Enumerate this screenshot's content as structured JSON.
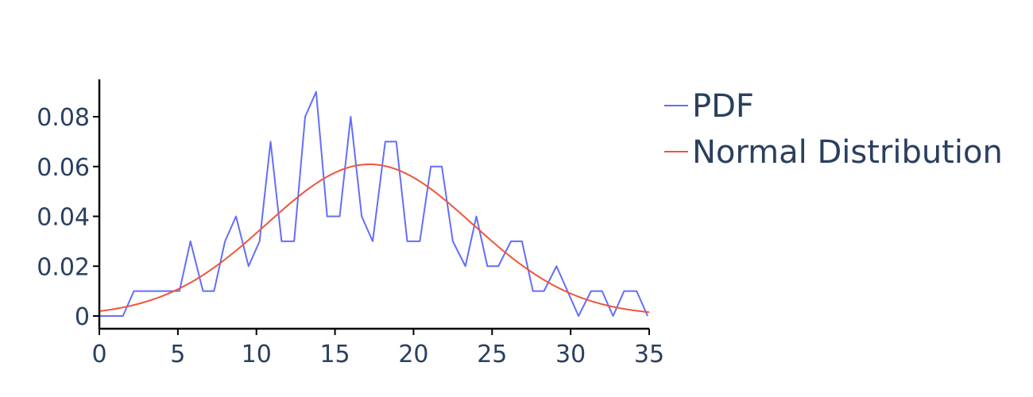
{
  "chart_data": {
    "type": "line",
    "x_axis": {
      "range": [
        0,
        35
      ],
      "ticks": [
        0,
        5,
        10,
        15,
        20,
        25,
        30,
        35
      ],
      "tick_labels": [
        "0",
        "5",
        "10",
        "15",
        "20",
        "25",
        "30",
        "35"
      ]
    },
    "y_axis": {
      "range": [
        -0.005,
        0.095
      ],
      "ticks": [
        0,
        0.02,
        0.04,
        0.06,
        0.08
      ],
      "tick_labels": [
        "0",
        "0.02",
        "0.04",
        "0.06",
        "0.08"
      ]
    },
    "grid": false,
    "legend_position": "top-right",
    "series": [
      {
        "name": "PDF",
        "color": "#636efa",
        "x": [
          0,
          0.7,
          1.5,
          2.2,
          2.9,
          3.6,
          4.4,
          5.1,
          5.8,
          6.6,
          7.3,
          8.0,
          8.7,
          9.5,
          10.2,
          10.9,
          11.6,
          12.4,
          13.1,
          13.8,
          14.5,
          15.3,
          16.0,
          16.7,
          17.4,
          18.2,
          18.9,
          19.6,
          20.4,
          21.1,
          21.8,
          22.5,
          23.3,
          24.0,
          24.7,
          25.4,
          26.2,
          26.9,
          27.6,
          28.3,
          29.1,
          29.8,
          30.5,
          31.3,
          32.0,
          32.7,
          33.4,
          34.2,
          34.9
        ],
        "y": [
          0,
          0,
          0,
          0.01,
          0.01,
          0.01,
          0.01,
          0.01,
          0.03,
          0.01,
          0.01,
          0.03,
          0.04,
          0.02,
          0.03,
          0.07,
          0.03,
          0.03,
          0.08,
          0.09,
          0.04,
          0.04,
          0.08,
          0.04,
          0.03,
          0.07,
          0.07,
          0.03,
          0.03,
          0.06,
          0.06,
          0.03,
          0.02,
          0.04,
          0.02,
          0.02,
          0.03,
          0.03,
          0.01,
          0.01,
          0.02,
          0.01,
          0,
          0.01,
          0.01,
          0,
          0.01,
          0.01,
          0
        ]
      },
      {
        "name": "Normal Distribution",
        "color": "#ef553b",
        "distribution": "normal",
        "mean": 17.2,
        "std": 6.55,
        "x_range": [
          0,
          35
        ]
      }
    ]
  }
}
